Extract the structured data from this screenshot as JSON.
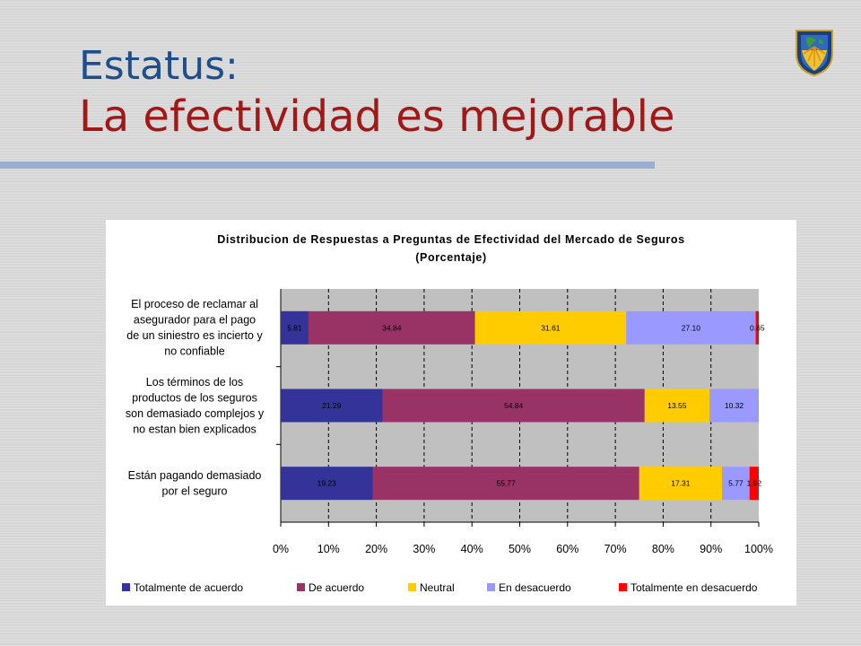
{
  "slide": {
    "title_line1": "Estatus:",
    "title_line2": "La efectividad es mejorable"
  },
  "colors": {
    "title_blue": "#1f4e8c",
    "title_red": "#a01818",
    "plot_background": "#c0c0c0"
  },
  "chart_data": {
    "type": "bar",
    "orientation": "horizontal",
    "stacked": "percent",
    "title": "Distribucion de Respuestas a Preguntas de Efectividad del Mercado de Seguros",
    "subtitle": "(Porcentaje)",
    "categories": [
      "El proceso de reclamar  al asegurador para el pago de un siniestro es incierto y no confiable",
      "Los términos de los productos de los seguros son demasiado complejos y no estan bien explicados",
      "Están pagando demasiado por el seguro"
    ],
    "category_lines": [
      [
        "El proceso de reclamar  al",
        "asegurador para el pago",
        "de un siniestro es incierto y",
        "no confiable"
      ],
      [
        "Los términos de los",
        "productos de los seguros",
        "son demasiado complejos y",
        "no estan bien explicados"
      ],
      [
        "Están pagando demasiado",
        "por el seguro"
      ]
    ],
    "series": [
      {
        "name": "Totalmente de acuerdo",
        "color": "#333399",
        "values": [
          5.81,
          21.29,
          19.23
        ],
        "labels": [
          "5.81",
          "21.29",
          "19.23"
        ]
      },
      {
        "name": "De acuerdo",
        "color": "#993366",
        "values": [
          34.84,
          54.84,
          55.77
        ],
        "labels": [
          "34.84",
          "54.84",
          "55.77"
        ]
      },
      {
        "name": "Neutral",
        "color": "#ffcc00",
        "values": [
          31.61,
          13.55,
          17.31
        ],
        "labels": [
          "31.61",
          "13.55",
          "17.31"
        ]
      },
      {
        "name": "En desacuerdo",
        "color": "#9999ff",
        "values": [
          27.1,
          10.32,
          5.77
        ],
        "labels": [
          "27.10",
          "10.32",
          "5.77"
        ]
      },
      {
        "name": "Totalmente en desacuerdo",
        "color": "#ff0000",
        "values": [
          0.65,
          0.0,
          1.92
        ],
        "labels": [
          "0.65",
          "",
          "1.92"
        ]
      }
    ],
    "x_ticks": [
      "0%",
      "10%",
      "20%",
      "30%",
      "40%",
      "50%",
      "60%",
      "70%",
      "80%",
      "90%",
      "100%"
    ],
    "xlim": [
      0,
      100
    ],
    "grid": true,
    "legend_position": "bottom"
  }
}
